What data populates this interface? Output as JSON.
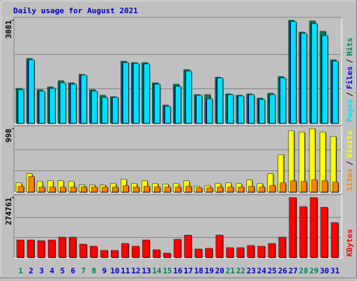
{
  "chart_data": [
    {
      "type": "bar",
      "title": "Daily usage for August 2021",
      "title_color": "#0000c0",
      "ylim": [
        0,
        3081
      ],
      "yticks": [
        3081
      ],
      "grid": true,
      "legend_separator": "/",
      "series": [
        {
          "name": "Hits",
          "color": "#00805c",
          "values": [
            1041,
            1936,
            1000,
            1083,
            1270,
            1207,
            1458,
            1000,
            833,
            791,
            1853,
            1811,
            1811,
            1207,
            541,
            1166,
            1603,
            854,
            854,
            1374,
            875,
            833,
            875,
            750,
            896,
            1395,
            3081,
            2727,
            3060,
            2748,
            1895
          ]
        },
        {
          "name": "Files",
          "color": "#0000ff",
          "values": [
            999,
            1895,
            958,
            1041,
            1208,
            1166,
            1437,
            958,
            770,
            770,
            1811,
            1790,
            1770,
            1166,
            500,
            1103,
            1561,
            833,
            729,
            1353,
            854,
            812,
            854,
            708,
            854,
            1353,
            3040,
            2686,
            2977,
            2623,
            1853
          ]
        },
        {
          "name": "Pages",
          "color": "#00e0ff",
          "values": [
            999,
            1895,
            958,
            1041,
            1208,
            1166,
            1437,
            958,
            770,
            770,
            1811,
            1790,
            1770,
            1166,
            500,
            1103,
            1561,
            833,
            729,
            1353,
            854,
            812,
            854,
            708,
            854,
            1353,
            3040,
            2686,
            2977,
            2623,
            1853
          ]
        }
      ]
    },
    {
      "type": "bar",
      "ylim": [
        0,
        998
      ],
      "yticks": [
        998
      ],
      "grid": true,
      "legend_separator": "/",
      "series": [
        {
          "name": "Visits",
          "color": "#ffff00",
          "values": [
            144,
            288,
            166,
            177,
            177,
            166,
            111,
            111,
            111,
            133,
            200,
            133,
            177,
            133,
            122,
            133,
            177,
            89,
            100,
            133,
            144,
            133,
            189,
            133,
            288,
            588,
            965,
            943,
            998,
            943,
            876
          ]
        },
        {
          "name": "Sites",
          "color": "#ff8000",
          "values": [
            89,
            244,
            78,
            78,
            78,
            78,
            78,
            78,
            78,
            78,
            100,
            78,
            89,
            78,
            78,
            78,
            89,
            67,
            67,
            78,
            78,
            78,
            89,
            78,
            100,
            144,
            177,
            166,
            189,
            177,
            155
          ]
        }
      ]
    },
    {
      "type": "bar",
      "ylim": [
        0,
        274761
      ],
      "yticks": [
        274761
      ],
      "grid": true,
      "categories": [
        "1",
        "2",
        "3",
        "4",
        "5",
        "6",
        "7",
        "8",
        "9",
        "10",
        "11",
        "12",
        "13",
        "14",
        "15",
        "16",
        "17",
        "18",
        "19",
        "20",
        "21",
        "22",
        "23",
        "24",
        "25",
        "26",
        "27",
        "28",
        "29",
        "30",
        "31"
      ],
      "category_colors": [
        "#00805c",
        "#0000c0",
        "#0000c0",
        "#0000c0",
        "#0000c0",
        "#0000c0",
        "#00805c",
        "#00805c",
        "#0000c0",
        "#0000c0",
        "#0000c0",
        "#0000c0",
        "#0000c0",
        "#00805c",
        "#00805c",
        "#0000c0",
        "#0000c0",
        "#0000c0",
        "#0000c0",
        "#0000c0",
        "#00805c",
        "#00805c",
        "#0000c0",
        "#0000c0",
        "#0000c0",
        "#0000c0",
        "#0000c0",
        "#00805c",
        "#00805c",
        "#0000c0",
        "#0000c0"
      ],
      "series": [
        {
          "name": "KBytes",
          "color": "#ff0000",
          "values": [
            79870,
            79870,
            76700,
            79870,
            92650,
            92650,
            60700,
            51100,
            31950,
            31950,
            63900,
            51100,
            79870,
            35140,
            19170,
            83070,
            102240,
            38340,
            41530,
            102240,
            44730,
            44730,
            54300,
            51100,
            63900,
            92650,
            274761,
            233200,
            274761,
            230000,
            159700
          ]
        }
      ]
    }
  ]
}
